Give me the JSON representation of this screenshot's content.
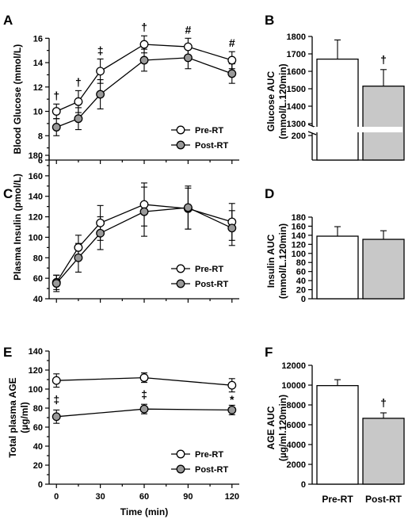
{
  "figure": {
    "xlabel": "Time (min)"
  },
  "legend_labels": {
    "pre": "Pre-RT",
    "post": "Post-RT"
  },
  "colors": {
    "pre_fill": "#ffffff",
    "post_fill": "#999999",
    "bar_post": "#c8c8c8",
    "stroke": "#000000"
  },
  "chart_data": [
    {
      "panel": "A",
      "type": "line",
      "ylabel": "Blood Glucose (mmol/L)",
      "x": [
        0,
        15,
        30,
        60,
        90,
        120
      ],
      "ylim": [
        6,
        16.8
      ],
      "yticks": [
        6,
        8,
        10,
        12,
        14,
        16
      ],
      "legend": "right",
      "series": [
        {
          "name": "Pre-RT",
          "values": [
            10.0,
            10.8,
            13.3,
            15.5,
            15.3,
            14.2
          ],
          "errors": [
            0.6,
            0.9,
            1.0,
            0.7,
            0.7,
            0.7
          ]
        },
        {
          "name": "Post-RT",
          "values": [
            8.7,
            9.4,
            11.4,
            14.2,
            14.4,
            13.1
          ],
          "errors": [
            0.7,
            0.9,
            1.2,
            0.9,
            0.9,
            0.8
          ]
        }
      ],
      "annotations": [
        {
          "text": "†",
          "x": 0
        },
        {
          "text": "†",
          "x": 15
        },
        {
          "text": "‡",
          "x": 30
        },
        {
          "text": "†",
          "x": 60
        },
        {
          "text": "#",
          "x": 90
        },
        {
          "text": "#",
          "x": 120
        }
      ]
    },
    {
      "panel": "B",
      "type": "bar",
      "ylabel": "Glucose AUC\n(mmol/L.120min)",
      "categories": [
        "Pre-RT",
        "Post-RT"
      ],
      "values": [
        1670,
        1515
      ],
      "errors": [
        110,
        95
      ],
      "yticks": [
        "200",
        "1300",
        "1400",
        "1500",
        "1600",
        "1700",
        "1800"
      ],
      "axis_break": [
        200,
        1300
      ],
      "annotations": [
        {
          "text": "†",
          "category": "Post-RT"
        }
      ]
    },
    {
      "panel": "C",
      "type": "line",
      "ylabel": "Plasma Insulin (pmol/L)",
      "x": [
        0,
        15,
        30,
        60,
        90,
        120
      ],
      "ylim": [
        40,
        180
      ],
      "yticks": [
        40,
        60,
        80,
        100,
        120,
        140,
        160,
        180
      ],
      "legend": "right",
      "series": [
        {
          "name": "Pre-RT",
          "values": [
            56,
            90,
            114,
            132,
            128,
            115
          ],
          "errors": [
            7,
            12,
            17,
            21,
            20,
            18
          ]
        },
        {
          "name": "Post-RT",
          "values": [
            55,
            80,
            104,
            125,
            129,
            109
          ],
          "errors": [
            8,
            14,
            16,
            24,
            21,
            17
          ]
        }
      ]
    },
    {
      "panel": "D",
      "type": "bar",
      "ylabel": "Insulin AUC\n(mmol/L.120min)",
      "categories": [
        "Pre-RT",
        "Post-RT"
      ],
      "values": [
        138,
        131
      ],
      "errors": [
        21,
        19
      ],
      "ylim": [
        0,
        180
      ],
      "yticks": [
        0,
        20,
        40,
        60,
        80,
        100,
        120,
        140,
        160,
        180
      ]
    },
    {
      "panel": "E",
      "type": "line",
      "ylabel": "Total plasma AGE\n(µg/ml)",
      "x": [
        0,
        60,
        120
      ],
      "xticks": [
        0,
        30,
        60,
        90,
        120
      ],
      "xlim": [
        -5,
        125
      ],
      "ylim": [
        0,
        140
      ],
      "yticks": [
        0,
        20,
        40,
        60,
        80,
        100,
        120,
        140
      ],
      "legend": "right",
      "series": [
        {
          "name": "Pre-RT",
          "values": [
            109,
            112,
            104
          ],
          "errors": [
            7,
            5,
            7
          ]
        },
        {
          "name": "Post-RT",
          "values": [
            71,
            79,
            78
          ],
          "errors": [
            7,
            5,
            5
          ]
        }
      ],
      "annotations": [
        {
          "text": "‡",
          "x": 0
        },
        {
          "text": "‡",
          "x": 60
        },
        {
          "text": "*",
          "x": 120
        }
      ]
    },
    {
      "panel": "F",
      "type": "bar",
      "ylabel": "AGE AUC\n(µg/ml.120min)",
      "categories": [
        "Pre-RT",
        "Post-RT"
      ],
      "values": [
        9950,
        6650
      ],
      "errors": [
        600,
        550
      ],
      "ylim": [
        0,
        12000
      ],
      "yticks": [
        0,
        2000,
        4000,
        6000,
        8000,
        10000,
        12000
      ],
      "annotations": [
        {
          "text": "†",
          "category": "Post-RT"
        }
      ]
    }
  ]
}
